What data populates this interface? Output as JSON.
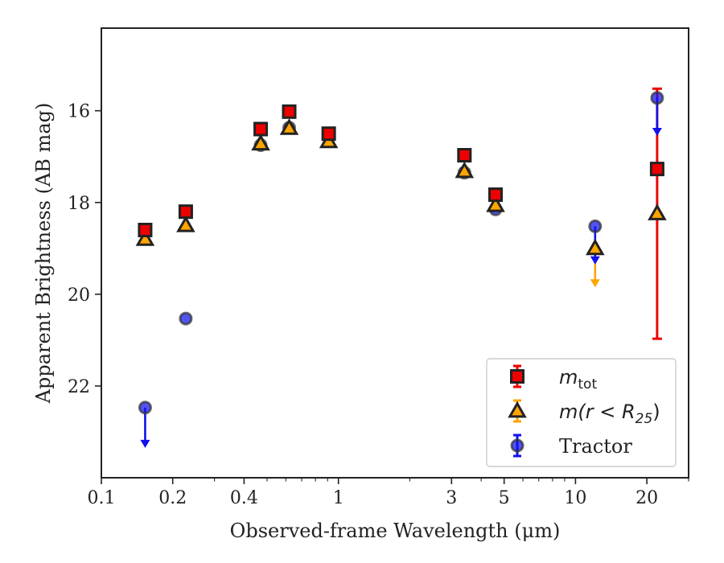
{
  "chart_data": {
    "type": "scatter",
    "xlabel": "Observed-frame Wavelength (μm)",
    "ylabel": "Apparent Brightness (AB mag)",
    "x_scale": "log",
    "xlim": [
      0.1,
      30
    ],
    "ylim": [
      24,
      14.2
    ],
    "y_inverted": true,
    "x_ticks": [
      0.1,
      0.2,
      0.4,
      1,
      3,
      5,
      10,
      20
    ],
    "x_tick_labels": [
      "0.1",
      "0.2",
      "0.4",
      "1",
      "3",
      "5",
      "10",
      "20"
    ],
    "y_ticks": [
      16,
      18,
      20,
      22
    ],
    "y_tick_labels": [
      "16",
      "18",
      "20",
      "22"
    ],
    "grid": false,
    "legend_position": "bottom-right",
    "series": [
      {
        "name": "m_tot",
        "legend_main": "m",
        "legend_sub": "tot",
        "marker": "square",
        "color": "#ee0000",
        "edge_color": "#222222",
        "points": [
          {
            "x": 0.153,
            "y": 18.6
          },
          {
            "x": 0.227,
            "y": 18.2
          },
          {
            "x": 0.47,
            "y": 16.4
          },
          {
            "x": 0.62,
            "y": 16.02
          },
          {
            "x": 0.91,
            "y": 16.5
          },
          {
            "x": 3.4,
            "y": 16.97
          },
          {
            "x": 4.6,
            "y": 17.83
          },
          {
            "x": 22.1,
            "y": 17.27,
            "yerr_low": 1.75,
            "yerr_high": 3.7
          }
        ]
      },
      {
        "name": "m(r < R25)",
        "legend_main": "m(r < R",
        "legend_sub": "25",
        "legend_tail": ")",
        "marker": "triangle",
        "color": "#ffa500",
        "edge_color": "#222222",
        "points": [
          {
            "x": 0.153,
            "y": 18.8
          },
          {
            "x": 0.227,
            "y": 18.5
          },
          {
            "x": 0.47,
            "y": 16.72
          },
          {
            "x": 0.62,
            "y": 16.38
          },
          {
            "x": 0.91,
            "y": 16.67
          },
          {
            "x": 3.4,
            "y": 17.32
          },
          {
            "x": 4.6,
            "y": 18.06
          },
          {
            "x": 12.1,
            "y": 19.0,
            "upper_limit": true,
            "arrow_to": 19.85
          },
          {
            "x": 22.1,
            "y": 18.24
          }
        ]
      },
      {
        "name": "Tractor",
        "legend_main": "Tractor",
        "marker": "circle",
        "color": "#1111ee",
        "edge_color": "#333333",
        "points": [
          {
            "x": 0.153,
            "y": 22.47,
            "upper_limit": true,
            "arrow_to": 23.35
          },
          {
            "x": 0.227,
            "y": 20.53
          },
          {
            "x": 0.47,
            "y": 16.75
          },
          {
            "x": 0.62,
            "y": 16.37
          },
          {
            "x": 0.91,
            "y": 16.52
          },
          {
            "x": 3.4,
            "y": 17.35
          },
          {
            "x": 4.6,
            "y": 18.15
          },
          {
            "x": 12.1,
            "y": 18.52,
            "upper_limit": true,
            "arrow_to": 19.35
          },
          {
            "x": 22.1,
            "y": 15.72,
            "upper_limit": true,
            "arrow_to": 16.55
          }
        ]
      }
    ]
  }
}
